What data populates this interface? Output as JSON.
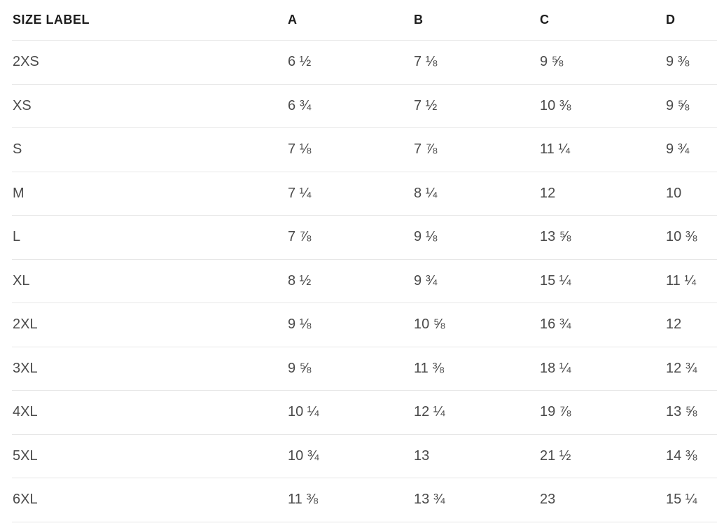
{
  "chart_data": {
    "type": "table",
    "title": "",
    "columns": [
      "SIZE LABEL",
      "A",
      "B",
      "C",
      "D"
    ],
    "rows": [
      {
        "label": "2XS",
        "values": [
          "6 ½",
          "7 ⅛",
          "9 ⅝",
          "9 ⅜"
        ]
      },
      {
        "label": "XS",
        "values": [
          "6 ¾",
          "7 ½",
          "10 ⅜",
          "9 ⅝"
        ]
      },
      {
        "label": "S",
        "values": [
          "7 ⅛",
          "7 ⅞",
          "11 ¼",
          "9 ¾"
        ]
      },
      {
        "label": "M",
        "values": [
          "7 ¼",
          "8 ¼",
          "12",
          "10"
        ]
      },
      {
        "label": "L",
        "values": [
          "7 ⅞",
          "9 ⅛",
          "13 ⅝",
          "10 ⅜"
        ]
      },
      {
        "label": "XL",
        "values": [
          "8 ½",
          "9 ¾",
          "15 ¼",
          "11 ¼"
        ]
      },
      {
        "label": "2XL",
        "values": [
          "9 ⅛",
          "10 ⅝",
          "16 ¾",
          "12"
        ]
      },
      {
        "label": "3XL",
        "values": [
          "9 ⅝",
          "11 ⅜",
          "18 ¼",
          "12 ¾"
        ]
      },
      {
        "label": "4XL",
        "values": [
          "10 ¼",
          "12 ¼",
          "19 ⅞",
          "13 ⅝"
        ]
      },
      {
        "label": "5XL",
        "values": [
          "10 ¾",
          "13",
          "21 ½",
          "14 ⅜"
        ]
      },
      {
        "label": "6XL",
        "values": [
          "11 ⅜",
          "13 ¾",
          "23",
          "15 ¼"
        ]
      }
    ],
    "layout": {
      "grid": "horizontal-row-dividers",
      "legend": "none"
    }
  },
  "colors": {
    "header_text": "#1d1d1d",
    "body_text": "#4b4b4b",
    "divider": "#e7e7e7",
    "background": "#ffffff"
  }
}
